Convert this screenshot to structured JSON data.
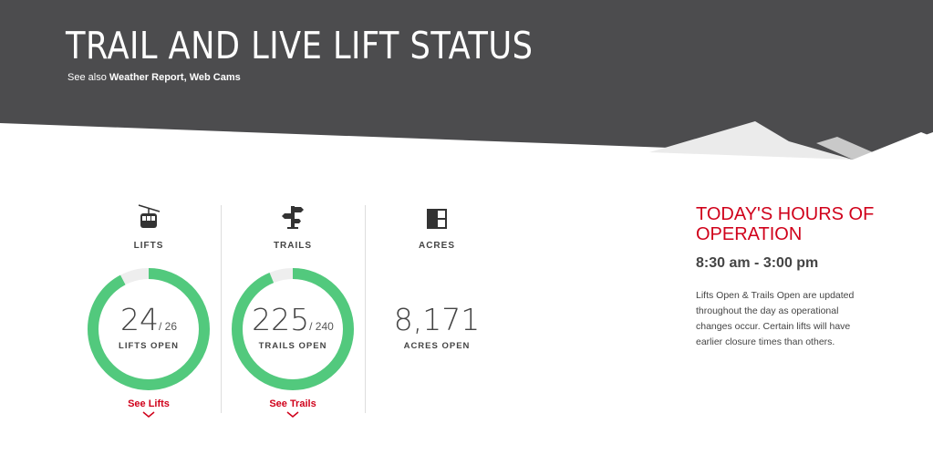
{
  "header": {
    "title": "TRAIL AND LIVE LIFT STATUS",
    "see_also_prefix": "See also",
    "links": [
      "Weather Report,",
      "Web Cams"
    ]
  },
  "stats": {
    "lifts": {
      "icon": "gondola-icon",
      "label": "LIFTS",
      "open": "24",
      "total": "/ 26",
      "open_fraction": 0.923,
      "sub": "LIFTS OPEN",
      "link": "See Lifts"
    },
    "trails": {
      "icon": "signpost-icon",
      "label": "TRAILS",
      "open": "225",
      "total": "/ 240",
      "open_fraction": 0.9375,
      "sub": "TRAILS OPEN",
      "link": "See Trails"
    },
    "acres": {
      "icon": "grid-icon",
      "label": "ACRES",
      "open": "8,171",
      "sub": "ACRES OPEN"
    }
  },
  "hours": {
    "title": "TODAY'S HOURS OF OPERATION",
    "time": "8:30 am - 3:00 pm",
    "note": "Lifts Open & Trails Open are updated throughout the day as operational changes occur. Certain lifts will have earlier closure times than others."
  },
  "colors": {
    "header_bg": "#4c4c4e",
    "accent": "#d0021b",
    "open_green": "#52c97d",
    "closed_gray": "#eeeeee"
  }
}
